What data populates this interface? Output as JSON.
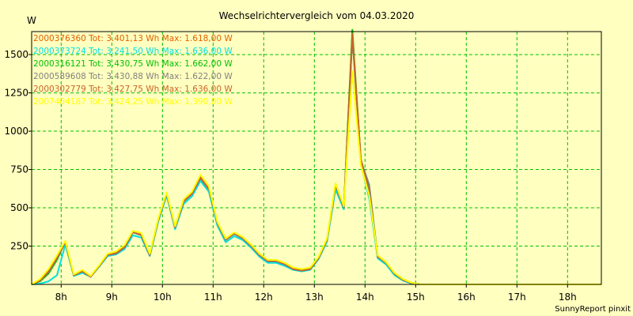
{
  "chart_data": {
    "type": "line",
    "title": "Wechselrichtervergleich vom 04.03.2020",
    "ylabel": "W",
    "xlabel": "",
    "ylim": [
      0,
      1650
    ],
    "xlim": [
      7.417,
      18.667
    ],
    "grid": true,
    "legend_position": "top-left",
    "footer": "SunnyReport pinxit",
    "y_ticks": [
      250,
      500,
      750,
      1000,
      1250,
      1500
    ],
    "y_tick_labels": [
      "250",
      "500",
      "750",
      "1000",
      "1250",
      "1500"
    ],
    "x_ticks": [
      8,
      9,
      10,
      11,
      12,
      13,
      14,
      15,
      16,
      17,
      18
    ],
    "x_tick_labels": [
      "8h",
      "9h",
      "10h",
      "11h",
      "12h",
      "13h",
      "14h",
      "15h",
      "16h",
      "17h",
      "18h"
    ],
    "x": [
      7.417,
      7.583,
      7.75,
      7.917,
      8.083,
      8.25,
      8.417,
      8.583,
      8.75,
      8.917,
      9.083,
      9.25,
      9.417,
      9.583,
      9.75,
      9.917,
      10.083,
      10.25,
      10.417,
      10.583,
      10.75,
      10.917,
      11.083,
      11.25,
      11.417,
      11.583,
      11.75,
      11.917,
      12.083,
      12.25,
      12.417,
      12.583,
      12.75,
      12.917,
      13.083,
      13.25,
      13.417,
      13.583,
      13.75,
      13.917,
      14.083,
      14.25,
      14.417,
      14.583,
      14.75,
      14.917,
      15.083,
      15.25,
      15.417,
      15.583,
      15.75,
      15.917,
      16.083,
      16.25,
      16.417,
      16.583,
      16.75,
      16.917,
      17.083,
      17.25,
      17.417,
      17.583,
      17.75,
      17.917,
      18.083,
      18.25,
      18.417,
      18.583,
      18.667
    ],
    "series": [
      {
        "name": "2000376360",
        "legend": "2000376360 Tot: 3.401,13 Wh Max: 1.618,00 W",
        "color": "#e06000",
        "values": [
          0,
          30,
          90,
          180,
          270,
          60,
          80,
          50,
          120,
          190,
          200,
          240,
          340,
          320,
          190,
          420,
          590,
          370,
          540,
          590,
          690,
          620,
          400,
          290,
          330,
          300,
          250,
          190,
          150,
          150,
          130,
          100,
          90,
          100,
          170,
          290,
          640,
          500,
          1618,
          820,
          590,
          180,
          140,
          70,
          30,
          10,
          0,
          0,
          0,
          0,
          0,
          0,
          0,
          0,
          0,
          0,
          0,
          0,
          0,
          0,
          0,
          0,
          0,
          0,
          0,
          0,
          0,
          0,
          0
        ]
      },
      {
        "name": "2000373724",
        "legend": "2000373724 Tot: 3.241,50 Wh Max: 1.636,00 W",
        "color": "#00e0e0",
        "values": [
          0,
          5,
          20,
          60,
          260,
          55,
          75,
          50,
          115,
          185,
          195,
          230,
          320,
          305,
          185,
          410,
          580,
          360,
          525,
          575,
          675,
          605,
          385,
          275,
          315,
          290,
          240,
          180,
          140,
          140,
          120,
          95,
          85,
          95,
          165,
          280,
          620,
          490,
          1636,
          790,
          560,
          170,
          130,
          60,
          25,
          5,
          0,
          0,
          0,
          0,
          0,
          0,
          0,
          0,
          0,
          0,
          0,
          0,
          0,
          0,
          0,
          0,
          0,
          0,
          0,
          0,
          0,
          0,
          0
        ]
      },
      {
        "name": "2000316121",
        "legend": "2000316121 Tot: 3.430,75 Wh Max: 1.662,00 W",
        "color": "#00c000",
        "values": [
          0,
          20,
          70,
          160,
          280,
          60,
          90,
          50,
          120,
          195,
          205,
          245,
          345,
          325,
          195,
          425,
          595,
          375,
          545,
          595,
          700,
          630,
          405,
          295,
          335,
          305,
          255,
          195,
          155,
          155,
          135,
          100,
          90,
          100,
          175,
          295,
          650,
          505,
          1662,
          810,
          620,
          185,
          140,
          70,
          30,
          10,
          0,
          0,
          0,
          0,
          0,
          0,
          0,
          0,
          0,
          0,
          0,
          0,
          0,
          0,
          0,
          0,
          0,
          0,
          0,
          0,
          0,
          0,
          0
        ]
      },
      {
        "name": "2000589608",
        "legend": "2000589608 Tot: 3.430,88 Wh Max: 1.622,00 W",
        "color": "#808080",
        "values": [
          0,
          25,
          80,
          170,
          275,
          60,
          85,
          50,
          120,
          190,
          200,
          240,
          340,
          320,
          190,
          420,
          590,
          370,
          540,
          590,
          695,
          625,
          400,
          290,
          330,
          300,
          250,
          190,
          150,
          150,
          130,
          100,
          90,
          100,
          170,
          290,
          645,
          500,
          1622,
          810,
          650,
          180,
          140,
          70,
          30,
          10,
          0,
          0,
          0,
          0,
          0,
          0,
          0,
          0,
          0,
          0,
          0,
          0,
          0,
          0,
          0,
          0,
          0,
          0,
          0,
          0,
          0,
          0,
          0
        ]
      },
      {
        "name": "2000302779",
        "legend": "2000302779 Tot: 3.427,75 Wh Max: 1.636,00 W",
        "color": "#c86428",
        "values": [
          0,
          25,
          85,
          175,
          280,
          60,
          85,
          50,
          120,
          195,
          205,
          245,
          345,
          325,
          195,
          425,
          595,
          375,
          545,
          595,
          700,
          630,
          405,
          295,
          335,
          305,
          255,
          195,
          155,
          155,
          135,
          100,
          90,
          100,
          175,
          295,
          650,
          505,
          1636,
          815,
          600,
          185,
          140,
          70,
          30,
          10,
          0,
          0,
          0,
          0,
          0,
          0,
          0,
          0,
          0,
          0,
          0,
          0,
          0,
          0,
          0,
          0,
          0,
          0,
          0,
          0,
          0,
          0,
          0
        ]
      },
      {
        "name": "2007404187",
        "legend": "2007404187 Tot: 3.424,25 Wh Max: 1.390,00 W",
        "color": "#ffff00",
        "values": [
          0,
          35,
          100,
          190,
          285,
          65,
          95,
          55,
          125,
          200,
          215,
          255,
          350,
          335,
          200,
          430,
          600,
          380,
          555,
          605,
          715,
          640,
          410,
          300,
          340,
          310,
          260,
          200,
          160,
          160,
          140,
          110,
          100,
          110,
          180,
          300,
          660,
          510,
          1390,
          780,
          580,
          190,
          145,
          75,
          35,
          12,
          0,
          0,
          0,
          0,
          0,
          0,
          0,
          0,
          0,
          0,
          0,
          0,
          0,
          0,
          0,
          0,
          0,
          0,
          0,
          0,
          0,
          0,
          0
        ]
      }
    ]
  }
}
